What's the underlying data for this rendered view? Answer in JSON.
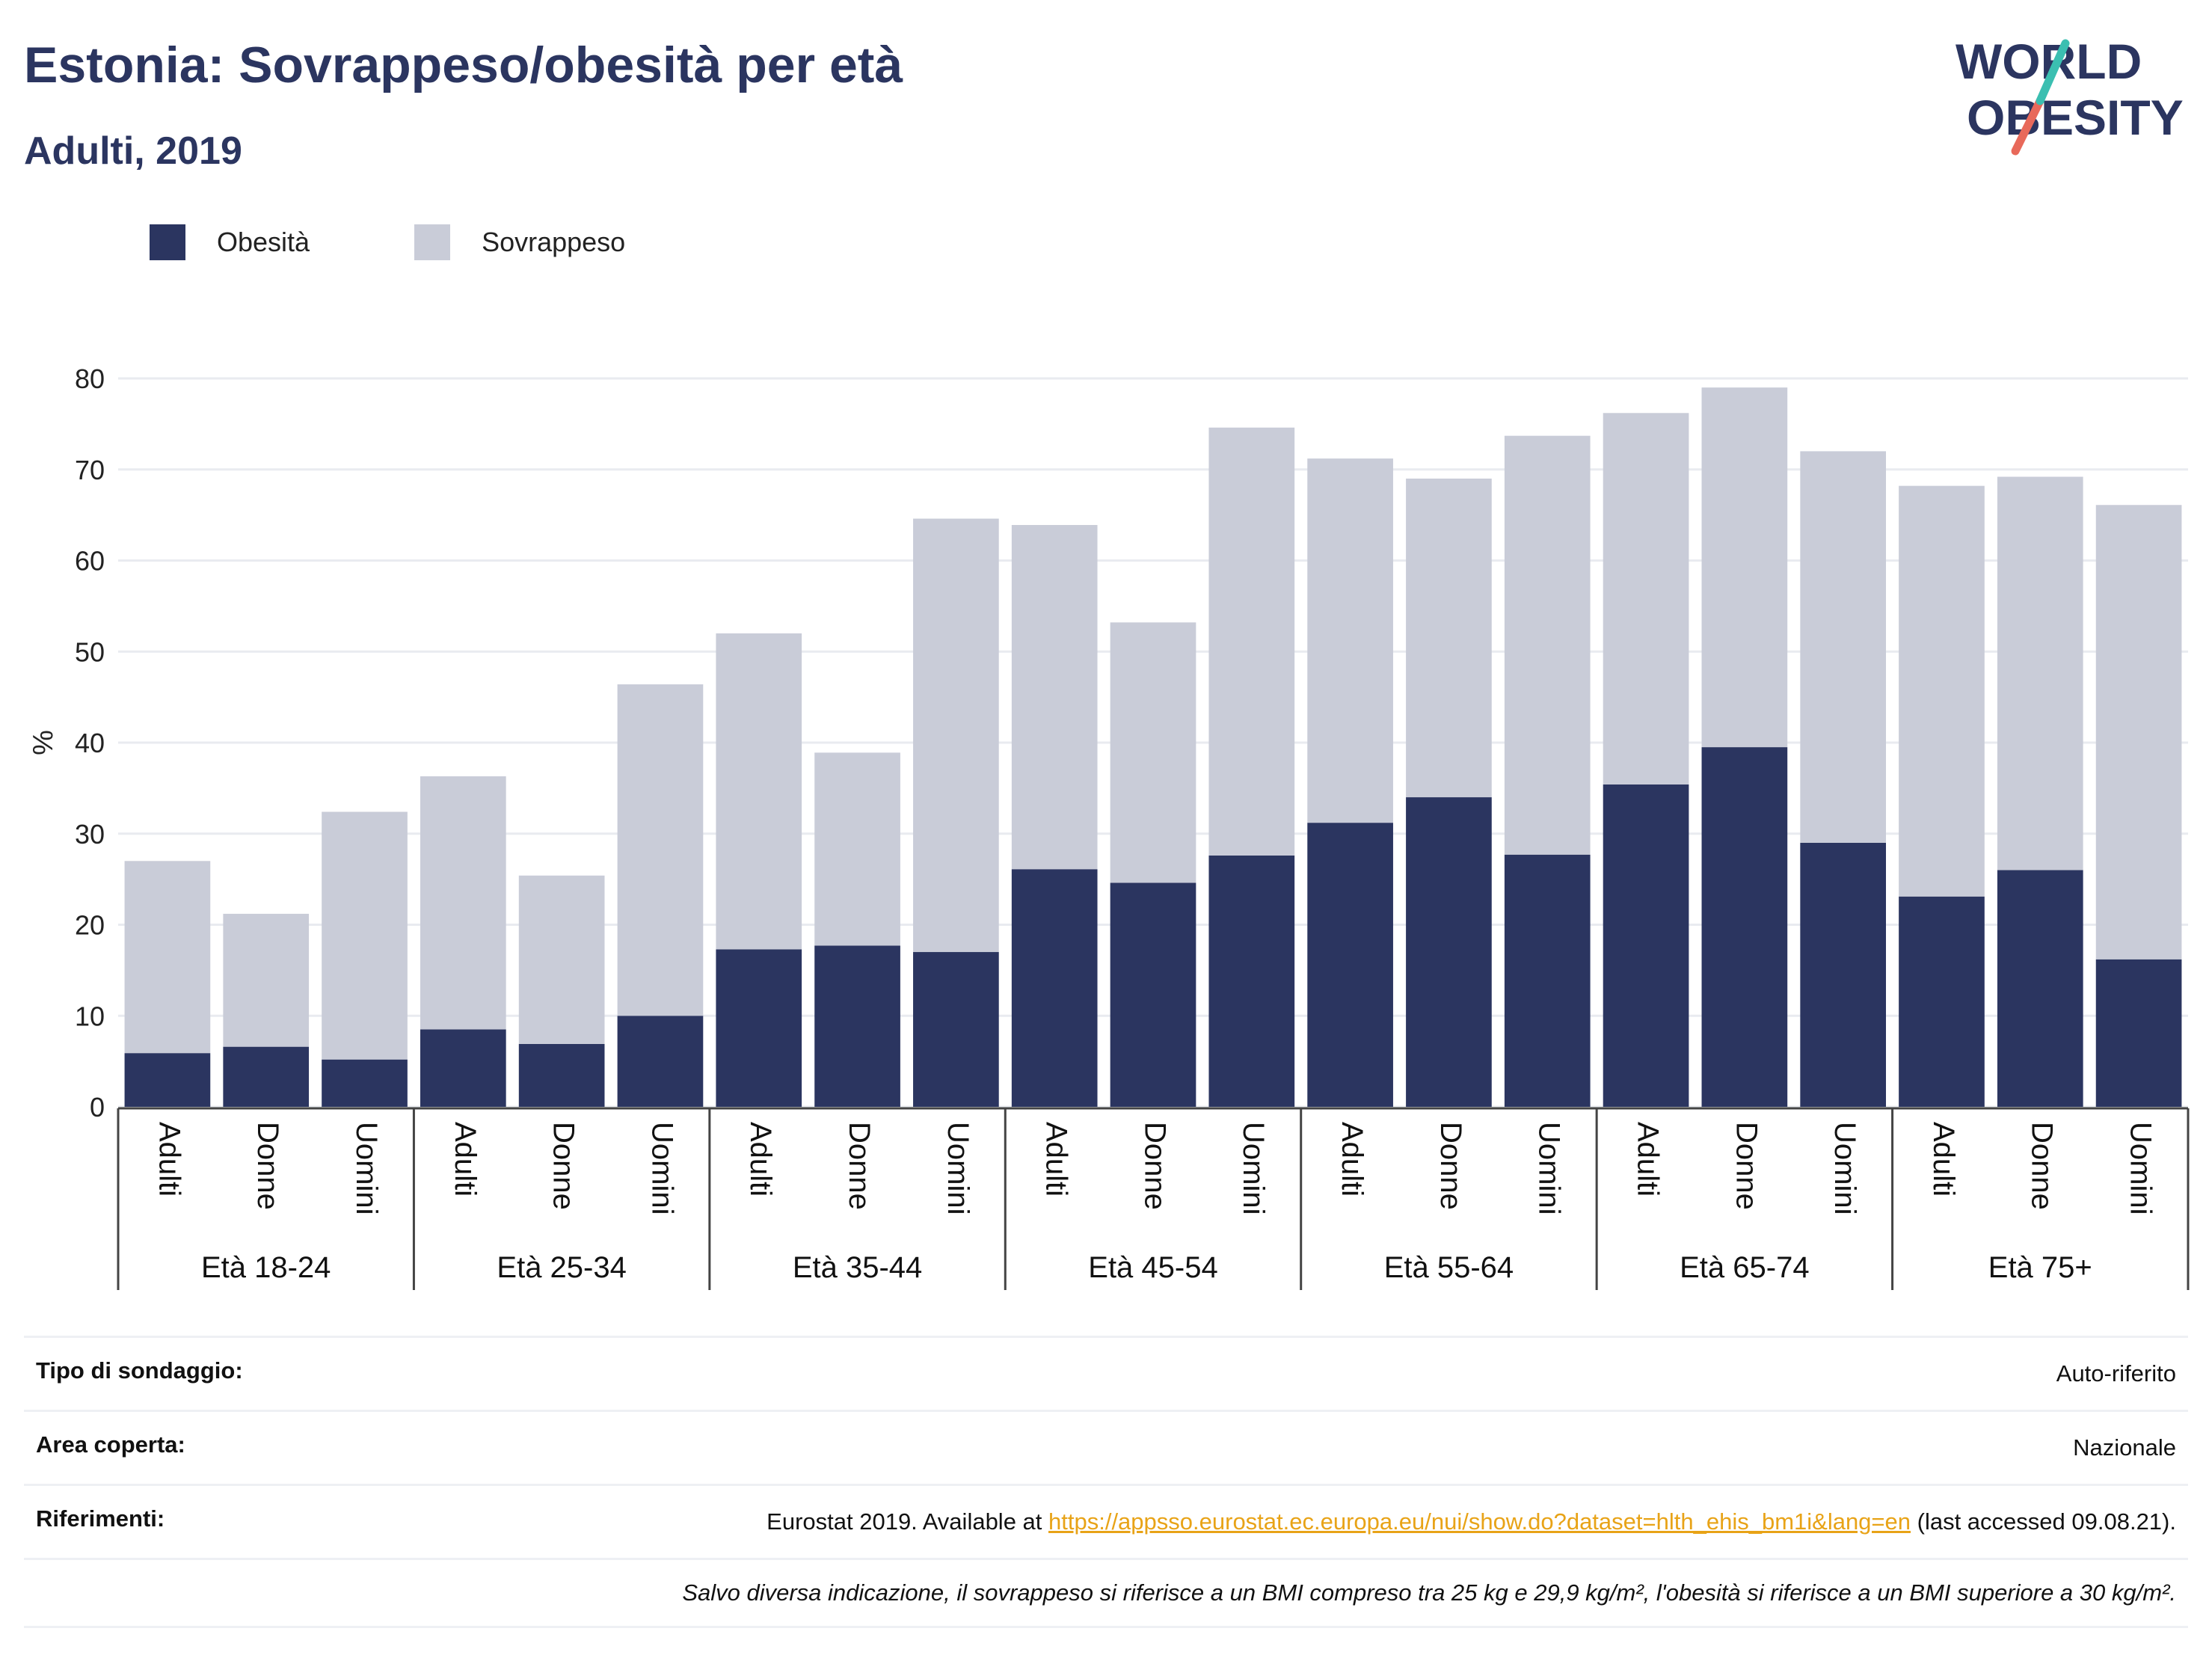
{
  "header": {
    "title": "Estonia: Sovrappeso/obesità per età",
    "subtitle": "Adulti, 2019"
  },
  "logo": {
    "line1": "WORLD",
    "line2": "OBESITY"
  },
  "legend": [
    {
      "label": "Obesità",
      "color": "#2b3560"
    },
    {
      "label": "Sovrappeso",
      "color": "#c9ccd8"
    }
  ],
  "chart_data": {
    "type": "bar",
    "stacked": true,
    "ylabel": "%",
    "ylim": [
      0,
      80
    ],
    "yticks": [
      0,
      10,
      20,
      30,
      40,
      50,
      60,
      70,
      80
    ],
    "grid": true,
    "legend_position": "top-left",
    "groups": [
      "Età 18-24",
      "Età 25-34",
      "Età 35-44",
      "Età 45-54",
      "Età 55-64",
      "Età 65-74",
      "Età 75+"
    ],
    "subcategories": [
      "Adulti",
      "Donne",
      "Uomini"
    ],
    "series": [
      {
        "name": "Obesità",
        "color": "#2b3560",
        "values": [
          5.9,
          6.6,
          5.2,
          8.5,
          6.9,
          10.0,
          17.3,
          17.7,
          17.0,
          26.1,
          24.6,
          27.6,
          31.2,
          34.0,
          27.7,
          35.4,
          39.5,
          29.0,
          23.1,
          26.0,
          16.2
        ]
      },
      {
        "name": "Sovrappeso",
        "color": "#c9ccd8",
        "values": [
          21.1,
          14.6,
          27.2,
          27.8,
          18.5,
          36.4,
          34.7,
          21.2,
          47.6,
          37.8,
          28.6,
          47.0,
          40.0,
          35.0,
          46.0,
          40.8,
          39.5,
          43.0,
          45.1,
          43.2,
          49.9
        ]
      }
    ]
  },
  "info": {
    "survey_label": "Tipo di sondaggio:",
    "survey_value": "Auto-riferito",
    "area_label": "Area coperta:",
    "area_value": "Nazionale",
    "refs_label": "Riferimenti:",
    "refs_prefix": "Eurostat 2019. Available at ",
    "refs_link": "https://appsso.eurostat.ec.europa.eu/nui/show.do?dataset=hlth_ehis_bm1i&lang=en",
    "refs_suffix": " (last accessed 09.08.21).",
    "note": "Salvo diversa indicazione, il sovrappeso si riferisce a un BMI compreso tra 25 kg e 29,9 kg/m², l'obesità si riferisce a un BMI superiore a 30 kg/m²."
  }
}
